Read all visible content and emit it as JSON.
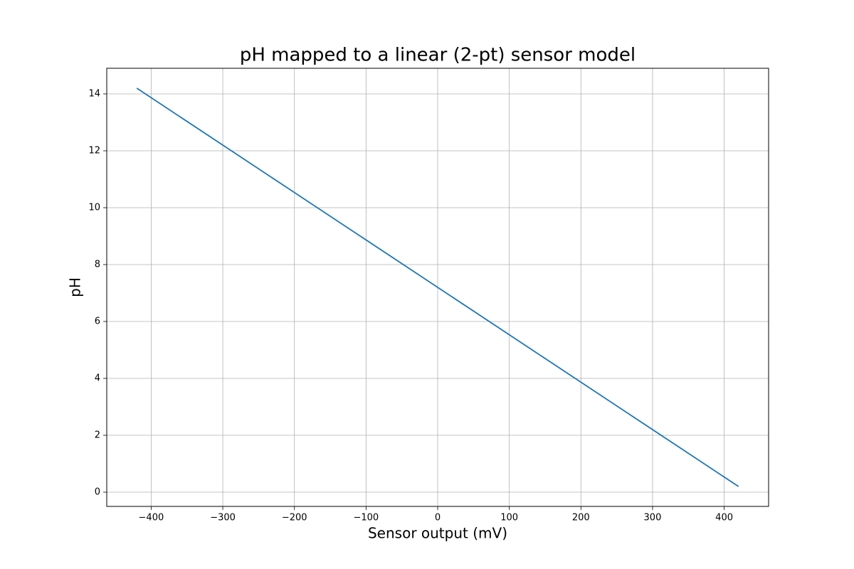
{
  "chart_data": {
    "type": "line",
    "title": "pH mapped to a linear (2-pt) sensor model",
    "x_label": "Sensor output (mV)",
    "y_label": "pH",
    "x": [
      -420,
      420
    ],
    "values": [
      14.2,
      0.2
    ],
    "color": "#1f77b4",
    "xlim": [
      -462,
      462
    ],
    "ylim": [
      -0.5,
      14.9
    ],
    "xticks": [
      {
        "value": -400,
        "label": "−400"
      },
      {
        "value": -300,
        "label": "−300"
      },
      {
        "value": -200,
        "label": "−200"
      },
      {
        "value": -100,
        "label": "−100"
      },
      0,
      100,
      200,
      300,
      400
    ],
    "yticks": [
      0,
      2,
      4,
      6,
      8,
      10,
      12,
      14
    ],
    "grid": true
  }
}
